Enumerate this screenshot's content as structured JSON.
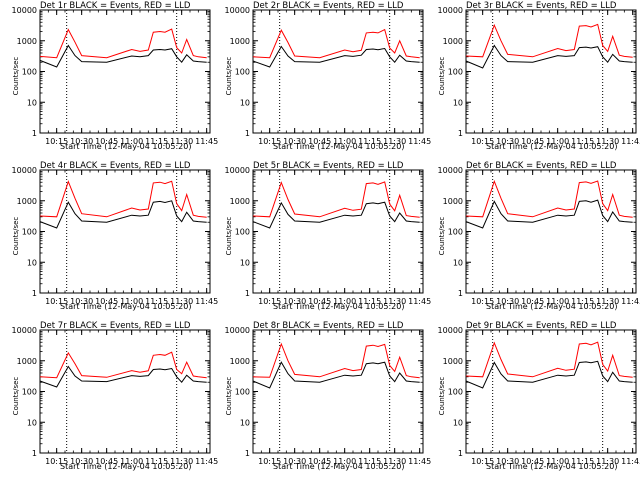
{
  "chart_data": [
    {
      "type": "line",
      "title": "Det 1r BLACK = Events, RED = LLD",
      "xlabel": "Start Time (12-May-04 10:05:20)",
      "ylabel": "Counts/sec",
      "x": [
        "10:05",
        "10:15",
        "10:22",
        "10:26",
        "10:30",
        "10:45",
        "11:00",
        "11:05",
        "11:10",
        "11:13",
        "11:17",
        "11:20",
        "11:24",
        "11:27",
        "11:30",
        "11:33",
        "11:37",
        "11:40",
        "11:45"
      ],
      "series": [
        {
          "name": "BLACK = Events",
          "color": "#000000",
          "values": [
            230,
            140,
            700,
            330,
            210,
            200,
            320,
            300,
            330,
            500,
            520,
            500,
            550,
            300,
            200,
            350,
            220,
            210,
            200
          ]
        },
        {
          "name": "RED = LLD",
          "color": "#ff0000",
          "values": [
            310,
            280,
            2300,
            900,
            330,
            280,
            520,
            450,
            500,
            1900,
            2000,
            1900,
            2400,
            600,
            400,
            1100,
            330,
            300,
            280
          ]
        }
      ]
    },
    {
      "type": "line",
      "title": "Det 2r BLACK = Events, RED = LLD",
      "xlabel": "Start Time (12-May-04 10:05:20)",
      "ylabel": "Counts/sec",
      "x": [
        "10:05",
        "10:15",
        "10:22",
        "10:26",
        "10:30",
        "10:45",
        "11:00",
        "11:05",
        "11:10",
        "11:13",
        "11:17",
        "11:20",
        "11:24",
        "11:27",
        "11:30",
        "11:33",
        "11:37",
        "11:40",
        "11:45"
      ],
      "series": [
        {
          "name": "BLACK = Events",
          "color": "#000000",
          "values": [
            220,
            140,
            650,
            320,
            210,
            200,
            330,
            310,
            340,
            520,
            540,
            510,
            560,
            300,
            200,
            340,
            220,
            210,
            200
          ]
        },
        {
          "name": "RED = LLD",
          "color": "#ff0000",
          "values": [
            300,
            280,
            2200,
            880,
            320,
            280,
            500,
            440,
            490,
            1800,
            1900,
            1800,
            2300,
            580,
            400,
            1000,
            320,
            300,
            280
          ]
        }
      ]
    },
    {
      "type": "line",
      "title": "Det 3r BLACK = Events, RED = LLD",
      "xlabel": "Start Time (12-May-04 10:05:20)",
      "ylabel": "Counts/sec",
      "x": [
        "10:05",
        "10:15",
        "10:22",
        "10:26",
        "10:30",
        "10:45",
        "11:00",
        "11:05",
        "11:10",
        "11:13",
        "11:17",
        "11:20",
        "11:24",
        "11:27",
        "11:30",
        "11:33",
        "11:37",
        "11:40",
        "11:45"
      ],
      "series": [
        {
          "name": "BLACK = Events",
          "color": "#000000",
          "values": [
            220,
            130,
            700,
            330,
            210,
            200,
            330,
            310,
            330,
            600,
            620,
            580,
            640,
            300,
            200,
            360,
            220,
            210,
            200
          ]
        },
        {
          "name": "RED = LLD",
          "color": "#ff0000",
          "values": [
            320,
            300,
            3200,
            1000,
            360,
            300,
            560,
            480,
            520,
            3000,
            3100,
            2800,
            3400,
            700,
            450,
            1400,
            340,
            310,
            290
          ]
        }
      ]
    },
    {
      "type": "line",
      "title": "Det 4r BLACK = Events, RED = LLD",
      "xlabel": "Start Time (12-May-04 10:05:20)",
      "ylabel": "Counts/sec",
      "x": [
        "10:05",
        "10:15",
        "10:22",
        "10:26",
        "10:30",
        "10:45",
        "11:00",
        "11:05",
        "11:10",
        "11:13",
        "11:17",
        "11:20",
        "11:24",
        "11:27",
        "11:30",
        "11:33",
        "11:37",
        "11:40",
        "11:45"
      ],
      "series": [
        {
          "name": "BLACK = Events",
          "color": "#000000",
          "values": [
            210,
            130,
            900,
            380,
            220,
            200,
            340,
            320,
            340,
            900,
            950,
            880,
            1000,
            320,
            210,
            420,
            220,
            210,
            200
          ]
        },
        {
          "name": "RED = LLD",
          "color": "#ff0000",
          "values": [
            320,
            300,
            4200,
            1200,
            380,
            300,
            580,
            500,
            540,
            3800,
            4000,
            3600,
            4300,
            800,
            480,
            1600,
            340,
            310,
            290
          ]
        }
      ]
    },
    {
      "type": "line",
      "title": "Det 5r BLACK = Events, RED = LLD",
      "xlabel": "Start Time (12-May-04 10:05:20)",
      "ylabel": "Counts/sec",
      "x": [
        "10:05",
        "10:15",
        "10:22",
        "10:26",
        "10:30",
        "10:45",
        "11:00",
        "11:05",
        "11:10",
        "11:13",
        "11:17",
        "11:20",
        "11:24",
        "11:27",
        "11:30",
        "11:33",
        "11:37",
        "11:40",
        "11:45"
      ],
      "series": [
        {
          "name": "BLACK = Events",
          "color": "#000000",
          "values": [
            210,
            130,
            850,
            360,
            220,
            200,
            340,
            320,
            340,
            800,
            850,
            800,
            900,
            320,
            210,
            400,
            220,
            210,
            200
          ]
        },
        {
          "name": "RED = LLD",
          "color": "#ff0000",
          "values": [
            320,
            300,
            3900,
            1100,
            370,
            300,
            570,
            490,
            530,
            3600,
            3800,
            3400,
            4100,
            780,
            470,
            1500,
            330,
            310,
            290
          ]
        }
      ]
    },
    {
      "type": "line",
      "title": "Det 6r BLACK = Events, RED = LLD",
      "xlabel": "Start Time (12-May-04 10:05:20)",
      "ylabel": "Counts/sec",
      "x": [
        "10:05",
        "10:15",
        "10:22",
        "10:26",
        "10:30",
        "10:45",
        "11:00",
        "11:05",
        "11:10",
        "11:13",
        "11:17",
        "11:20",
        "11:24",
        "11:27",
        "11:30",
        "11:33",
        "11:37",
        "11:40",
        "11:45"
      ],
      "series": [
        {
          "name": "BLACK = Events",
          "color": "#000000",
          "values": [
            210,
            130,
            950,
            380,
            220,
            200,
            340,
            320,
            340,
            950,
            1000,
            900,
            1050,
            330,
            210,
            430,
            220,
            210,
            200
          ]
        },
        {
          "name": "RED = LLD",
          "color": "#ff0000",
          "values": [
            320,
            300,
            4300,
            1200,
            380,
            300,
            580,
            500,
            540,
            3900,
            4100,
            3700,
            4400,
            800,
            480,
            1600,
            340,
            310,
            290
          ]
        }
      ]
    },
    {
      "type": "line",
      "title": "Det 7r BLACK = Events, RED = LLD",
      "xlabel": "Start Time (12-May-04 10:05:20)",
      "ylabel": "Counts/sec",
      "x": [
        "10:05",
        "10:15",
        "10:22",
        "10:26",
        "10:30",
        "10:45",
        "11:00",
        "11:05",
        "11:10",
        "11:13",
        "11:17",
        "11:20",
        "11:24",
        "11:27",
        "11:30",
        "11:33",
        "11:37",
        "11:40",
        "11:45"
      ],
      "series": [
        {
          "name": "BLACK = Events",
          "color": "#000000",
          "values": [
            220,
            140,
            650,
            320,
            220,
            210,
            330,
            310,
            330,
            520,
            540,
            510,
            560,
            300,
            200,
            340,
            220,
            210,
            200
          ]
        },
        {
          "name": "RED = LLD",
          "color": "#ff0000",
          "values": [
            300,
            280,
            1800,
            800,
            330,
            290,
            480,
            420,
            470,
            1500,
            1600,
            1500,
            1900,
            520,
            380,
            900,
            320,
            300,
            280
          ]
        }
      ]
    },
    {
      "type": "line",
      "title": "Det 8r BLACK = Events, RED = LLD",
      "xlabel": "Start Time (12-May-04 10:05:20)",
      "ylabel": "Counts/sec",
      "x": [
        "10:05",
        "10:15",
        "10:22",
        "10:26",
        "10:30",
        "10:45",
        "11:00",
        "11:05",
        "11:10",
        "11:13",
        "11:17",
        "11:20",
        "11:24",
        "11:27",
        "11:30",
        "11:33",
        "11:37",
        "11:40",
        "11:45"
      ],
      "series": [
        {
          "name": "BLACK = Events",
          "color": "#000000",
          "values": [
            220,
            130,
            900,
            380,
            220,
            200,
            340,
            320,
            340,
            800,
            850,
            800,
            900,
            320,
            210,
            400,
            220,
            210,
            200
          ]
        },
        {
          "name": "RED = LLD",
          "color": "#ff0000",
          "values": [
            300,
            290,
            3500,
            1000,
            360,
            300,
            560,
            480,
            520,
            3000,
            3200,
            2900,
            3400,
            700,
            450,
            1300,
            330,
            300,
            280
          ]
        }
      ]
    },
    {
      "type": "line",
      "title": "Det 9r BLACK = Events, RED = LLD",
      "xlabel": "Start Time (12-May-04 10:05:20)",
      "ylabel": "Counts/sec",
      "x": [
        "10:05",
        "10:15",
        "10:22",
        "10:26",
        "10:30",
        "10:45",
        "11:00",
        "11:05",
        "11:10",
        "11:13",
        "11:17",
        "11:20",
        "11:24",
        "11:27",
        "11:30",
        "11:33",
        "11:37",
        "11:40",
        "11:45"
      ],
      "series": [
        {
          "name": "BLACK = Events",
          "color": "#000000",
          "values": [
            220,
            130,
            880,
            370,
            220,
            200,
            340,
            320,
            340,
            880,
            920,
            860,
            960,
            320,
            210,
            420,
            220,
            210,
            200
          ]
        },
        {
          "name": "RED = LLD",
          "color": "#ff0000",
          "values": [
            320,
            300,
            3800,
            1100,
            370,
            300,
            570,
            490,
            530,
            3500,
            3700,
            3300,
            4000,
            760,
            460,
            1500,
            330,
            310,
            290
          ]
        }
      ]
    }
  ],
  "shared": {
    "x_ticks": [
      "10:15",
      "10:30",
      "10:45",
      "11:00",
      "11:15",
      "11:30",
      "11:45"
    ],
    "y_ticks": [
      "1",
      "10",
      "100",
      "1000",
      "10000"
    ],
    "ylim": [
      1,
      10000
    ],
    "xlim": [
      "10:05",
      "11:47"
    ],
    "y_scale": "log",
    "vlines": [
      "10:21",
      "11:27"
    ]
  }
}
